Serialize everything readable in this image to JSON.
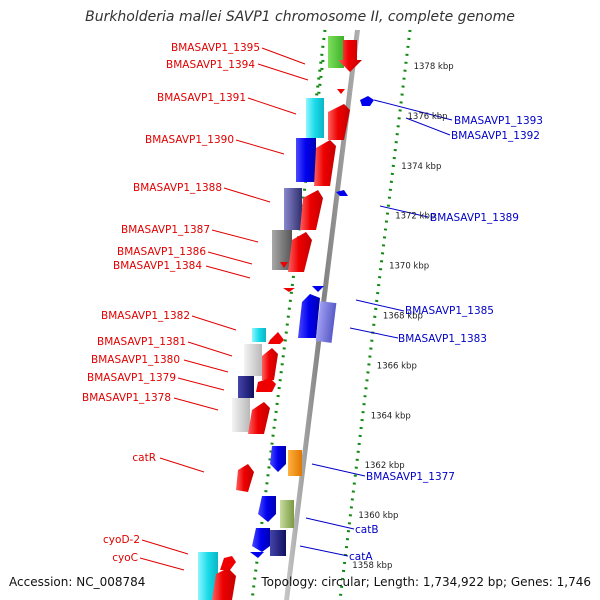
{
  "title": "Burkholderia mallei SAVP1 chromosome II, complete genome",
  "accession": "Accession: NC_008784",
  "summary": "Topology: circular; Length: 1,734,922 bp; Genes: 1,746",
  "colors": {
    "forward_label": "#e00000",
    "reverse_label": "#0000c8",
    "backbone": "#888888",
    "tick": "#118811"
  },
  "ruler": [
    {
      "label": "1358 kbp",
      "kbp": 1358
    },
    {
      "label": "1360 kbp",
      "kbp": 1360
    },
    {
      "label": "1362 kbp",
      "kbp": 1362
    },
    {
      "label": "1364 kbp",
      "kbp": 1364
    },
    {
      "label": "1366 kbp",
      "kbp": 1366
    },
    {
      "label": "1368 kbp",
      "kbp": 1368
    },
    {
      "label": "1370 kbp",
      "kbp": 1370
    },
    {
      "label": "1372 kbp",
      "kbp": 1372
    },
    {
      "label": "1374 kbp",
      "kbp": 1374
    },
    {
      "label": "1376 kbp",
      "kbp": 1376
    },
    {
      "label": "1378 kbp",
      "kbp": 1378
    }
  ],
  "genes_left": [
    {
      "name": "BMASAVP1_1395",
      "strand": "+"
    },
    {
      "name": "BMASAVP1_1394",
      "strand": "+"
    },
    {
      "name": "BMASAVP1_1391",
      "strand": "+"
    },
    {
      "name": "BMASAVP1_1390",
      "strand": "+"
    },
    {
      "name": "BMASAVP1_1388",
      "strand": "+"
    },
    {
      "name": "BMASAVP1_1387",
      "strand": "+"
    },
    {
      "name": "BMASAVP1_1386",
      "strand": "+"
    },
    {
      "name": "BMASAVP1_1384",
      "strand": "+"
    },
    {
      "name": "BMASAVP1_1382",
      "strand": "+"
    },
    {
      "name": "BMASAVP1_1381",
      "strand": "+"
    },
    {
      "name": "BMASAVP1_1380",
      "strand": "+"
    },
    {
      "name": "BMASAVP1_1379",
      "strand": "+"
    },
    {
      "name": "BMASAVP1_1378",
      "strand": "+"
    },
    {
      "name": "catR",
      "strand": "+"
    },
    {
      "name": "cyoD-2",
      "strand": "+"
    },
    {
      "name": "cyoC",
      "strand": "+"
    }
  ],
  "genes_right": [
    {
      "name": "BMASAVP1_1393",
      "strand": "-"
    },
    {
      "name": "BMASAVP1_1392",
      "strand": "-"
    },
    {
      "name": "BMASAVP1_1389",
      "strand": "-"
    },
    {
      "name": "BMASAVP1_1385",
      "strand": "-"
    },
    {
      "name": "BMASAVP1_1383",
      "strand": "-"
    },
    {
      "name": "BMASAVP1_1377",
      "strand": "-"
    },
    {
      "name": "catB",
      "strand": "-"
    },
    {
      "name": "catA",
      "strand": "-"
    }
  ]
}
